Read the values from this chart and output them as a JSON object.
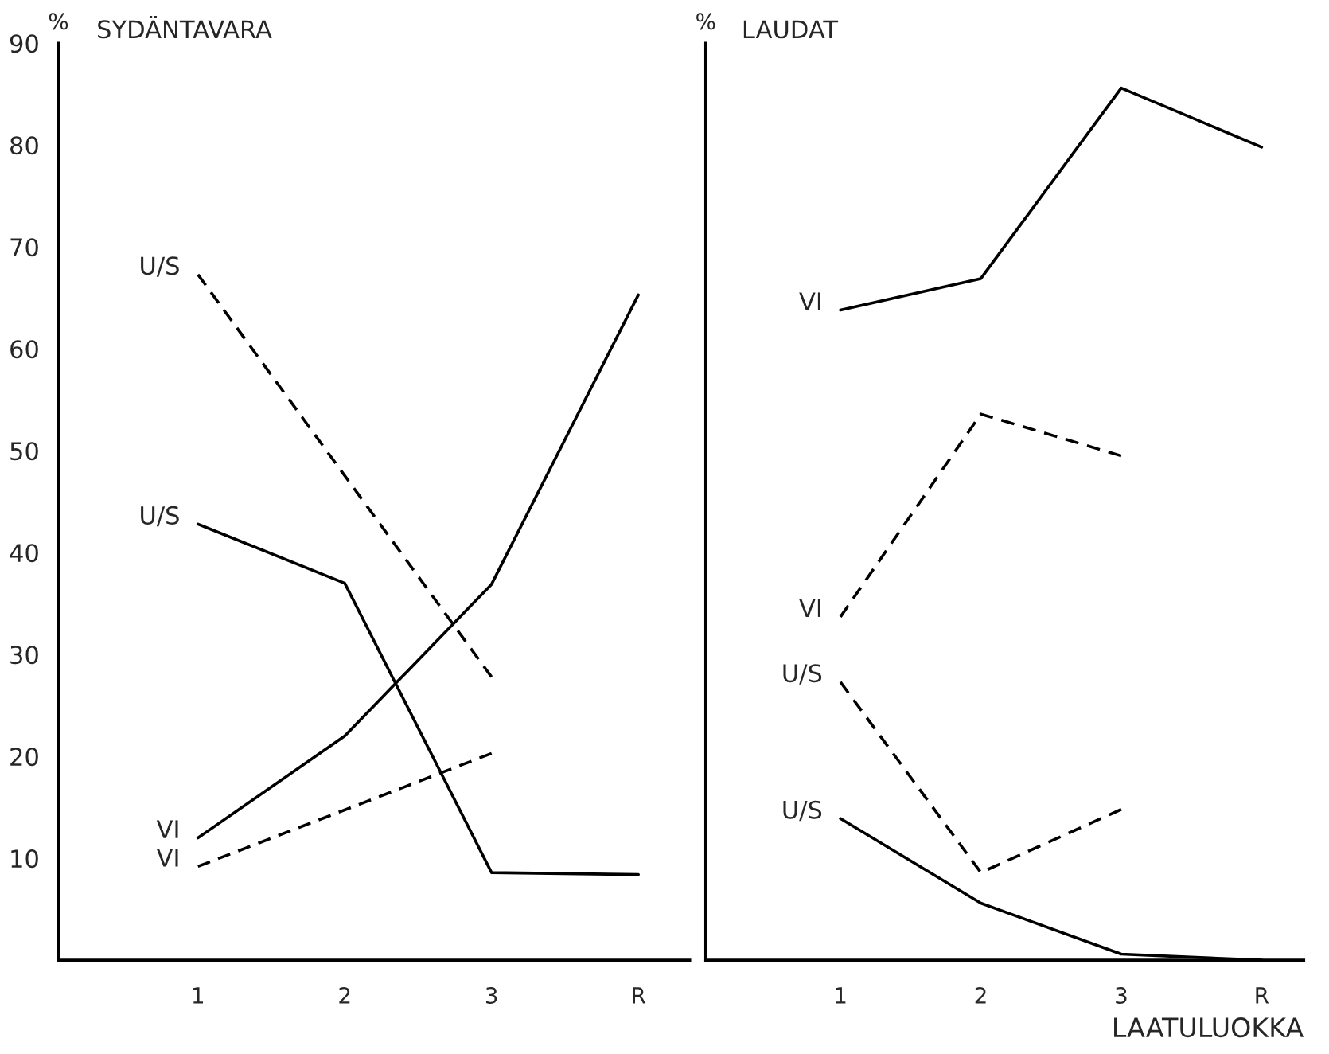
{
  "chart_data": [
    {
      "type": "line",
      "title": "SYDÄNTAVARA",
      "ylabel": "%",
      "categories": [
        "1",
        "2",
        "3",
        "R"
      ],
      "ylim": [
        0,
        90
      ],
      "yticks": [
        10,
        20,
        30,
        40,
        50,
        60,
        70,
        80,
        90
      ],
      "grid": false,
      "legend": false,
      "marker": "none",
      "series": [
        {
          "name": "U/S",
          "color": "#000000",
          "line_style": "dashed",
          "values": [
            67.3,
            null,
            27.8,
            null
          ]
        },
        {
          "name": "U/S",
          "color": "#000000",
          "line_style": "solid",
          "values": [
            42.8,
            37,
            8.6,
            8.4
          ]
        },
        {
          "name": "VI",
          "color": "#000000",
          "line_style": "solid",
          "values": [
            12,
            22,
            36.9,
            65.3
          ]
        },
        {
          "name": "VI",
          "color": "#000000",
          "line_style": "dashed",
          "values": [
            9.2,
            null,
            20.3,
            null
          ]
        }
      ]
    },
    {
      "type": "line",
      "title": "LAUDAT",
      "ylabel": "%",
      "xlabel": "LAATULUOKKA",
      "categories": [
        "1",
        "2",
        "3",
        "R"
      ],
      "ylim": [
        0,
        90
      ],
      "yticks": [
        10,
        20,
        30,
        40,
        50,
        60,
        70,
        80,
        90
      ],
      "tick_labels": "x",
      "grid": false,
      "legend": false,
      "marker": "none",
      "series": [
        {
          "name": "VI",
          "color": "#000000",
          "line_style": "solid",
          "values": [
            63.8,
            66.9,
            85.6,
            79.8
          ]
        },
        {
          "name": "VI",
          "color": "#000000",
          "line_style": "dashed",
          "values": [
            33.7,
            53.6,
            49.5,
            null
          ]
        },
        {
          "name": "U/S",
          "color": "#000000",
          "line_style": "dashed",
          "values": [
            27.3,
            8.6,
            14.8,
            null
          ]
        },
        {
          "name": "U/S",
          "color": "#000000",
          "line_style": "solid",
          "values": [
            13.9,
            5.6,
            0.6,
            0
          ]
        }
      ]
    }
  ]
}
